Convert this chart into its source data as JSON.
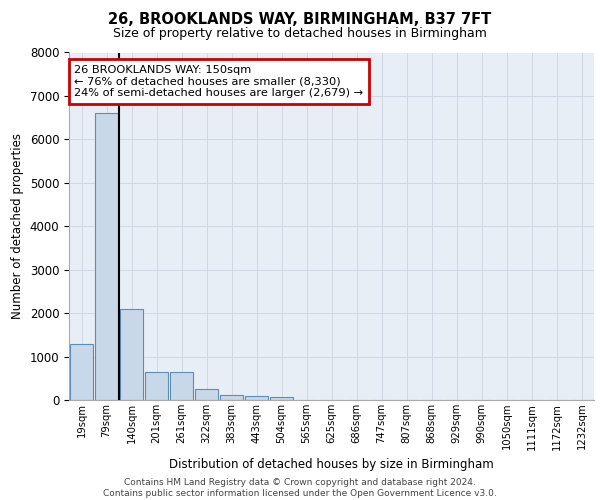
{
  "title": "26, BROOKLANDS WAY, BIRMINGHAM, B37 7FT",
  "subtitle": "Size of property relative to detached houses in Birmingham",
  "xlabel": "Distribution of detached houses by size in Birmingham",
  "ylabel": "Number of detached properties",
  "bar_color": "#c8d8e8",
  "bar_edge_color": "#5b8db8",
  "grid_color": "#d0d8e4",
  "background_color": "#e8eef5",
  "categories": [
    "19sqm",
    "79sqm",
    "140sqm",
    "201sqm",
    "261sqm",
    "322sqm",
    "383sqm",
    "443sqm",
    "504sqm",
    "565sqm",
    "625sqm",
    "686sqm",
    "747sqm",
    "807sqm",
    "868sqm",
    "929sqm",
    "990sqm",
    "1050sqm",
    "1111sqm",
    "1172sqm",
    "1232sqm"
  ],
  "values": [
    1300,
    6600,
    2100,
    650,
    650,
    250,
    120,
    100,
    80,
    0,
    0,
    0,
    0,
    0,
    0,
    0,
    0,
    0,
    0,
    0,
    0
  ],
  "property_index": 2,
  "vline_color": "#000000",
  "annotation_text": "26 BROOKLANDS WAY: 150sqm\n← 76% of detached houses are smaller (8,330)\n24% of semi-detached houses are larger (2,679) →",
  "annotation_box_color": "#ffffff",
  "annotation_box_edge_color": "#cc0000",
  "ylim": [
    0,
    8000
  ],
  "yticks": [
    0,
    1000,
    2000,
    3000,
    4000,
    5000,
    6000,
    7000,
    8000
  ],
  "footer_line1": "Contains HM Land Registry data © Crown copyright and database right 2024.",
  "footer_line2": "Contains public sector information licensed under the Open Government Licence v3.0.",
  "title_fontsize": 10.5,
  "subtitle_fontsize": 9,
  "footer_fontsize": 6.5
}
